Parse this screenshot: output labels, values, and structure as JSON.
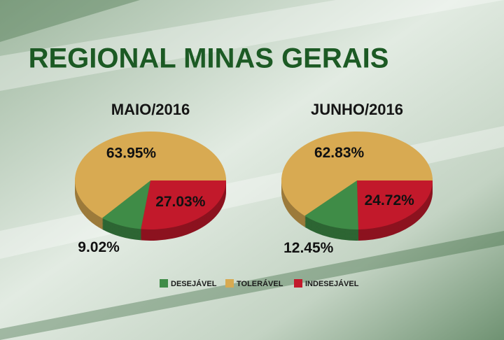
{
  "title": "REGIONAL MINAS GERAIS",
  "chart_data": [
    {
      "type": "pie",
      "title": "MAIO/2016",
      "categories": [
        "DESEJÁVEL",
        "TOLERÁVEL",
        "INDESEJÁVEL"
      ],
      "values": [
        9.02,
        63.95,
        27.03
      ],
      "value_labels": [
        "9.02%",
        "63.95%",
        "27.03%"
      ],
      "colors": [
        "#3f8c47",
        "#d8aa52",
        "#c2192b"
      ]
    },
    {
      "type": "pie",
      "title": "JUNHO/2016",
      "categories": [
        "DESEJÁVEL",
        "TOLERÁVEL",
        "INDESEJÁVEL"
      ],
      "values": [
        12.45,
        62.83,
        24.72
      ],
      "value_labels": [
        "12.45%",
        "62.83%",
        "24.72%"
      ],
      "colors": [
        "#3f8c47",
        "#d8aa52",
        "#c2192b"
      ]
    }
  ]
}
